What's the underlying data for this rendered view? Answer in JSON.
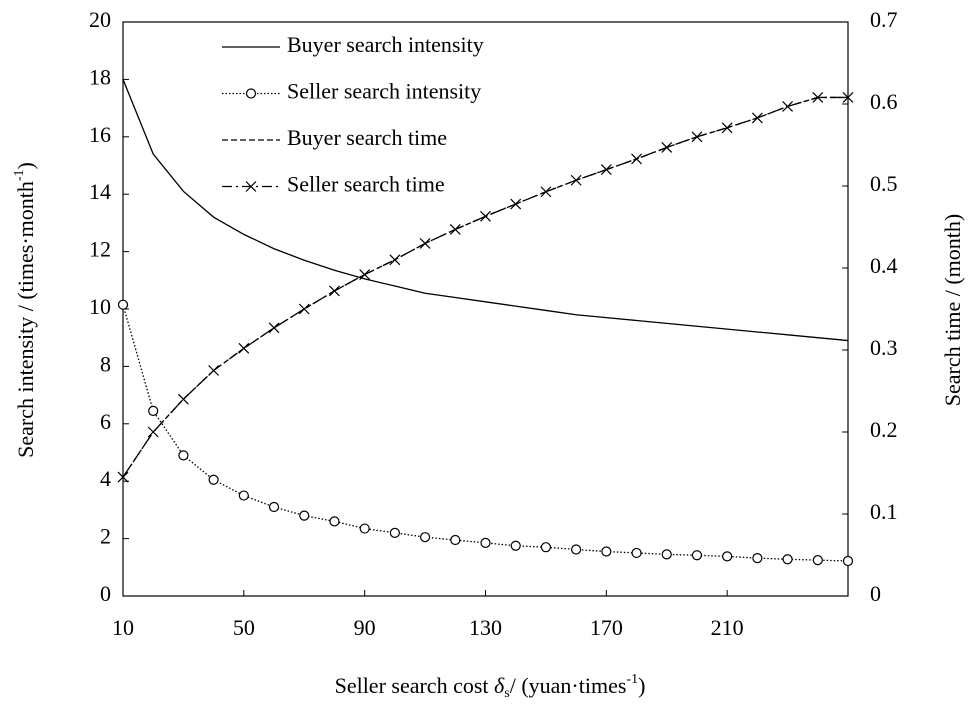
{
  "chart_data": {
    "type": "line",
    "xlabel": [
      "Seller  search cost ",
      "δ",
      "s",
      "/ (yuan·times",
      "-1",
      ")"
    ],
    "ylabel": [
      "Search intensity  / (times·month",
      "-1",
      ")"
    ],
    "y2label": "Search time / (month)",
    "x": [
      10,
      20,
      30,
      40,
      50,
      60,
      70,
      80,
      90,
      100,
      110,
      120,
      130,
      140,
      150,
      160,
      170,
      180,
      190,
      200,
      210,
      220,
      230,
      240,
      250
    ],
    "xlim": [
      10,
      250
    ],
    "xticks": [
      10,
      50,
      90,
      130,
      170,
      210
    ],
    "ylim": [
      0,
      20
    ],
    "yticks": [
      0,
      2,
      4,
      6,
      8,
      10,
      12,
      14,
      16,
      18,
      20
    ],
    "y2lim": [
      0,
      0.7
    ],
    "y2ticks": [
      0,
      0.1,
      0.2,
      0.3,
      0.4,
      0.5,
      0.6,
      0.7
    ],
    "legend": "top",
    "series": [
      {
        "name": "Buyer search intensity",
        "color": "#000000",
        "dash": "solid",
        "marker": "none",
        "values": [
          18.0,
          15.4,
          14.1,
          13.2,
          12.6,
          12.1,
          11.7,
          11.35,
          11.05,
          10.8,
          10.55,
          10.4,
          10.25,
          10.1,
          9.95,
          9.8,
          9.7,
          9.6,
          9.5,
          9.4,
          9.3,
          9.2,
          9.1,
          9.0,
          8.9
        ]
      },
      {
        "name": "Seller search intensity",
        "color": "#000000",
        "dash": "dotted",
        "marker": "circle",
        "values": [
          10.15,
          6.45,
          4.9,
          4.05,
          3.5,
          3.1,
          2.8,
          2.6,
          2.35,
          2.2,
          2.05,
          1.95,
          1.85,
          1.75,
          1.7,
          1.62,
          1.55,
          1.5,
          1.45,
          1.42,
          1.38,
          1.32,
          1.28,
          1.25,
          1.22
        ]
      },
      {
        "name": "Buyer search time",
        "color": "#000000",
        "dash": "dashed",
        "marker": "none",
        "axis": "y2",
        "values": [
          0.145,
          0.2,
          0.24,
          0.275,
          0.302,
          0.327,
          0.35,
          0.372,
          0.392,
          0.41,
          0.43,
          0.447,
          0.463,
          0.478,
          0.493,
          0.507,
          0.52,
          0.533,
          0.547,
          0.56,
          0.571,
          0.583,
          0.597,
          0.608,
          0.608
        ]
      },
      {
        "name": "Seller search time",
        "color": "#000000",
        "dash": "dashdot",
        "marker": "x",
        "axis": "y2",
        "values": [
          0.145,
          0.2,
          0.24,
          0.275,
          0.302,
          0.327,
          0.35,
          0.372,
          0.392,
          0.41,
          0.43,
          0.447,
          0.463,
          0.478,
          0.493,
          0.507,
          0.52,
          0.533,
          0.547,
          0.56,
          0.571,
          0.583,
          0.597,
          0.608,
          0.608
        ]
      }
    ]
  }
}
